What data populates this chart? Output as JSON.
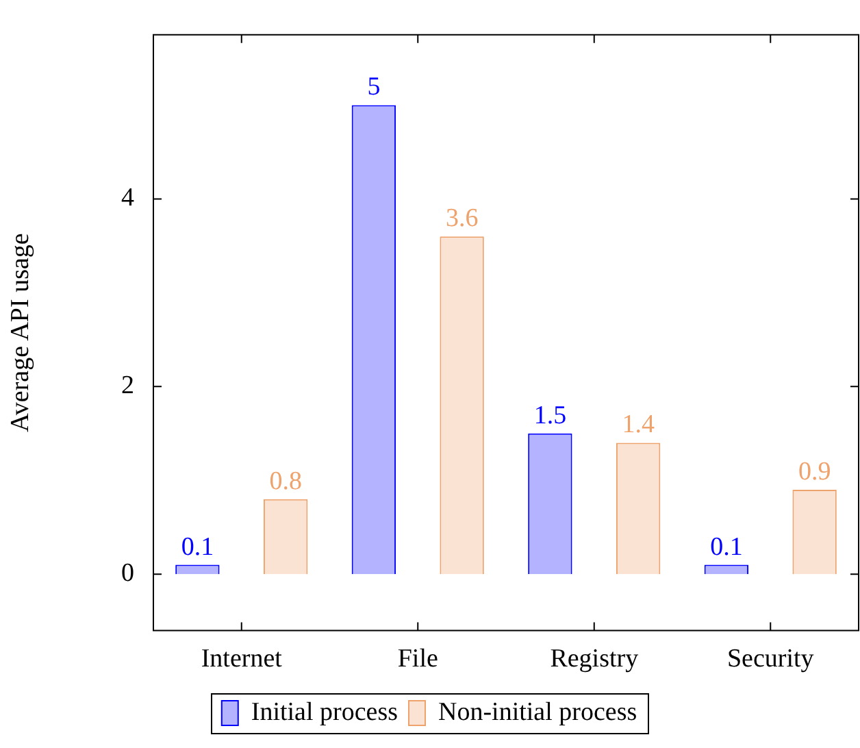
{
  "chart_data": {
    "type": "bar",
    "ylabel": "Average API usage",
    "categories": [
      "Internet",
      "File",
      "Registry",
      "Security"
    ],
    "series": [
      {
        "name": "Initial process",
        "color": "#b3b3ff",
        "values": [
          0.1,
          5,
          1.5,
          0.1
        ]
      },
      {
        "name": "Non-initial process",
        "color": "#fae3d3",
        "values": [
          0.8,
          3.6,
          1.4,
          0.9
        ]
      }
    ],
    "ylim": [
      -0.6,
      5.75
    ],
    "yticks": [
      0,
      2,
      4
    ],
    "data_labels": true,
    "legend": "bottom",
    "grid": false
  }
}
